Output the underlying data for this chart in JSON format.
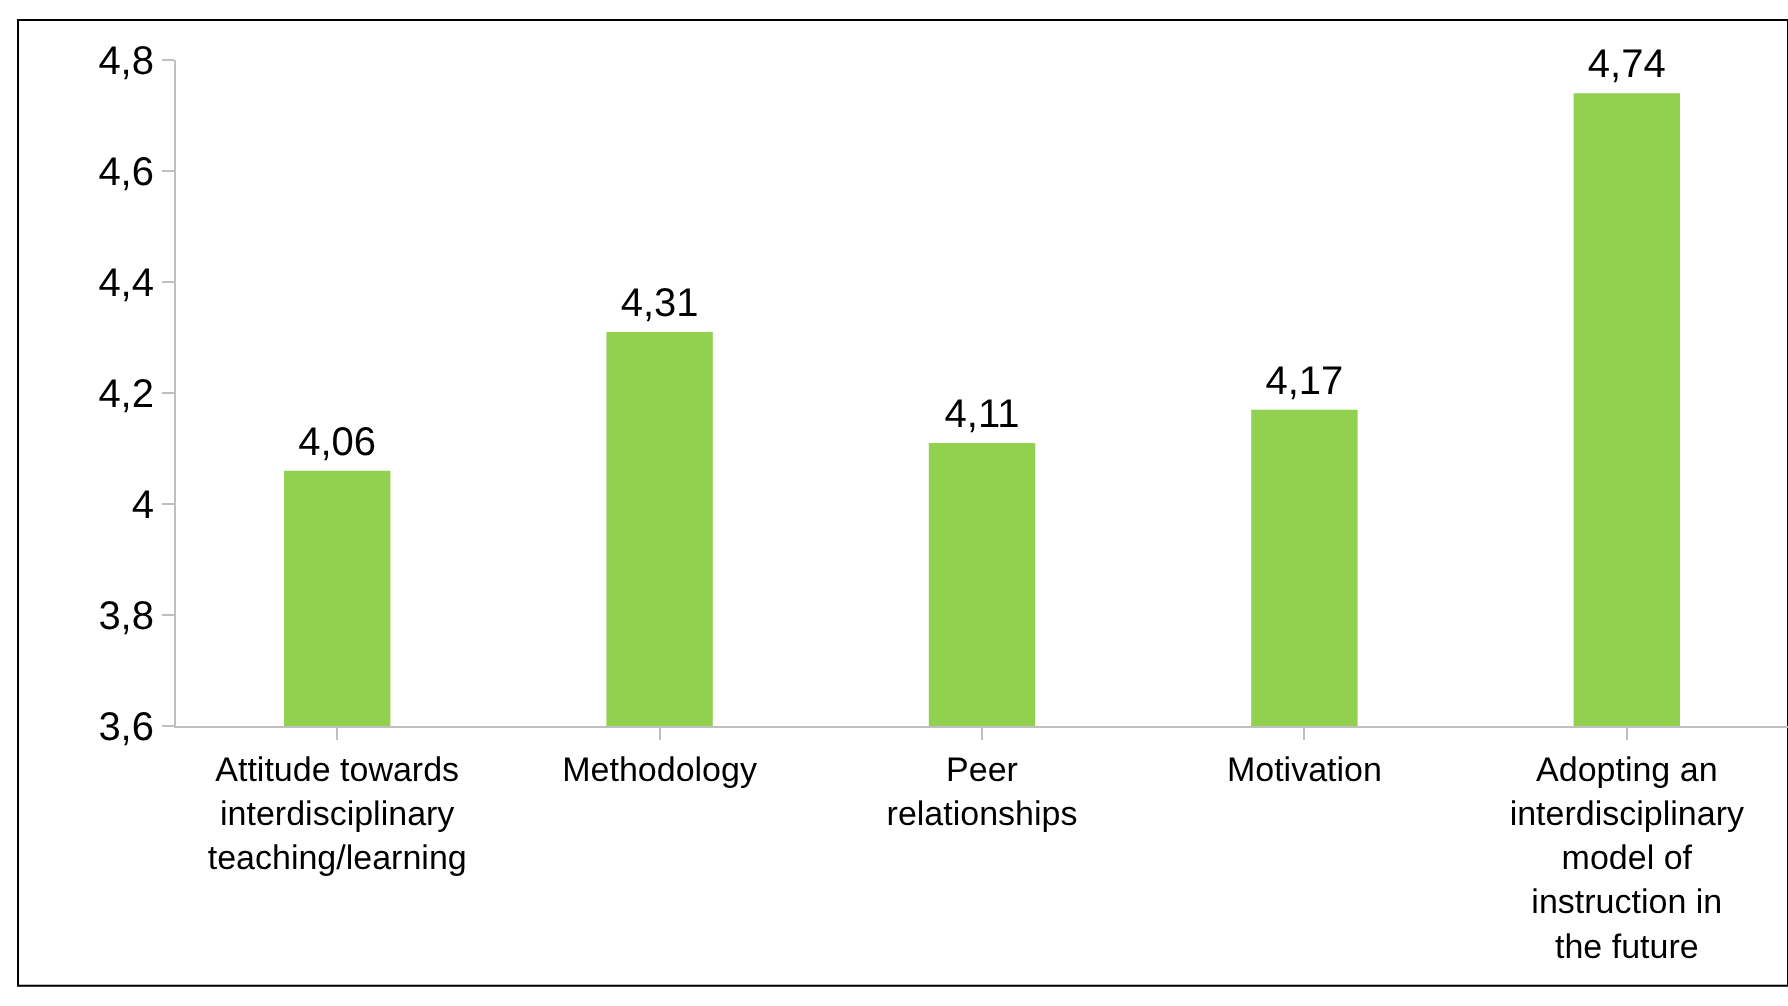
{
  "chart_data": {
    "type": "bar",
    "categories": [
      "Attitude towards interdisciplinary teaching/learning",
      "Methodology",
      "Peer relationships",
      "Motivation",
      "Adopting an interdisciplinary model of instruction in the future"
    ],
    "values": [
      4.06,
      4.31,
      4.11,
      4.17,
      4.74
    ],
    "value_labels": [
      "4,06",
      "4,31",
      "4,11",
      "4,17",
      "4,74"
    ],
    "color": "#92d050",
    "ylim": [
      3.6,
      4.8
    ],
    "yticks": [
      {
        "value": 3.6,
        "label": "3,6"
      },
      {
        "value": 3.8,
        "label": "3,8"
      },
      4,
      {
        "value": 4.2,
        "label": "4,2"
      },
      {
        "value": 4.4,
        "label": "4,4"
      },
      {
        "value": 4.6,
        "label": "4,6"
      },
      {
        "value": 4.8,
        "label": "4,8"
      }
    ],
    "grid": false,
    "legend": false
  }
}
